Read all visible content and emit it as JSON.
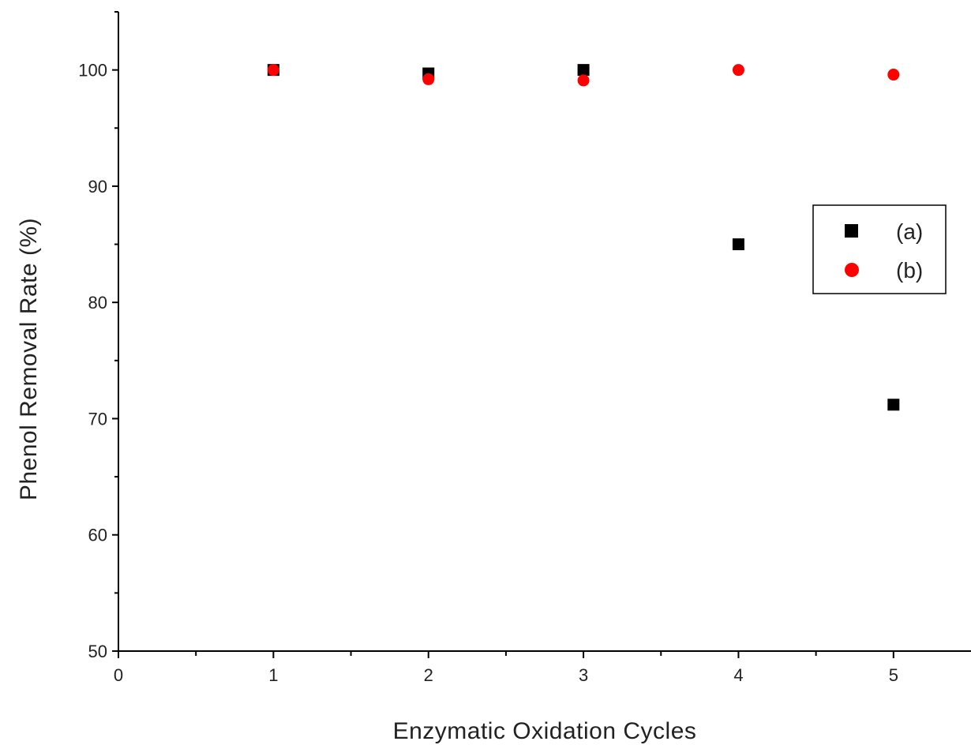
{
  "chart_data": {
    "type": "scatter",
    "title": "",
    "xlabel": "Enzymatic Oxidation Cycles",
    "ylabel": "Phenol Removal Rate (%)",
    "xlim": [
      0,
      5.5
    ],
    "ylim": [
      50,
      105
    ],
    "xticks": [
      0,
      1,
      2,
      3,
      4,
      5
    ],
    "yticks": [
      50,
      60,
      70,
      80,
      90,
      100
    ],
    "grid": false,
    "legend_position": "right",
    "series": [
      {
        "name": "(a)",
        "marker": "square",
        "color": "#000000",
        "x": [
          1,
          2,
          3,
          4,
          5
        ],
        "y": [
          100.0,
          99.7,
          100.0,
          85.0,
          71.2
        ]
      },
      {
        "name": "(b)",
        "marker": "circle",
        "color": "#ff0000",
        "x": [
          1,
          2,
          3,
          4,
          5
        ],
        "y": [
          100.0,
          99.2,
          99.1,
          100.0,
          99.6
        ]
      }
    ]
  }
}
